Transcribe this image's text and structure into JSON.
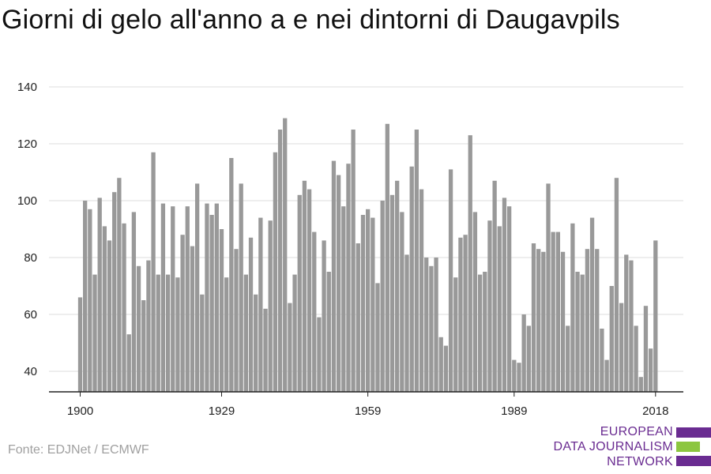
{
  "title": "Giorni di gelo all'anno a e nei dintorni di Daugavpils",
  "source": "Fonte: EDJNet / ECMWF",
  "logo": {
    "line1": "EUROPEAN",
    "line2": "DATA JOURNALISM",
    "line3": "NETWORK",
    "colors": {
      "purple": "#6a2c91",
      "green": "#8cc63f"
    }
  },
  "chart_data": {
    "type": "bar",
    "title": "Giorni di gelo all'anno a e nei dintorni di Daugavpils",
    "xlabel": "",
    "ylabel": "",
    "ylim": [
      33,
      145
    ],
    "yticks": [
      40,
      60,
      80,
      100,
      120,
      140
    ],
    "xticks": [
      1900,
      1929,
      1959,
      1989,
      2018
    ],
    "grid": true,
    "bar_color": "#999999",
    "x": [
      1900,
      1901,
      1902,
      1903,
      1904,
      1905,
      1906,
      1907,
      1908,
      1909,
      1910,
      1911,
      1912,
      1913,
      1914,
      1915,
      1916,
      1917,
      1918,
      1919,
      1920,
      1921,
      1922,
      1923,
      1924,
      1925,
      1926,
      1927,
      1928,
      1929,
      1930,
      1931,
      1932,
      1933,
      1934,
      1935,
      1936,
      1937,
      1938,
      1939,
      1940,
      1941,
      1942,
      1943,
      1944,
      1945,
      1946,
      1947,
      1948,
      1949,
      1950,
      1951,
      1952,
      1953,
      1954,
      1955,
      1956,
      1957,
      1958,
      1959,
      1960,
      1961,
      1962,
      1963,
      1964,
      1965,
      1966,
      1967,
      1968,
      1969,
      1970,
      1971,
      1972,
      1973,
      1974,
      1975,
      1976,
      1977,
      1978,
      1979,
      1980,
      1981,
      1982,
      1983,
      1984,
      1985,
      1986,
      1987,
      1988,
      1989,
      1990,
      1991,
      1992,
      1993,
      1994,
      1995,
      1996,
      1997,
      1998,
      1999,
      2000,
      2001,
      2002,
      2003,
      2004,
      2005,
      2006,
      2007,
      2008,
      2009,
      2010,
      2011,
      2012,
      2013,
      2014,
      2015,
      2016,
      2017,
      2018
    ],
    "values": [
      66,
      100,
      97,
      74,
      101,
      91,
      86,
      103,
      108,
      92,
      53,
      96,
      77,
      65,
      79,
      117,
      74,
      99,
      74,
      98,
      73,
      88,
      98,
      84,
      106,
      67,
      99,
      95,
      99,
      90,
      73,
      115,
      83,
      106,
      74,
      87,
      67,
      94,
      62,
      93,
      117,
      125,
      129,
      64,
      74,
      102,
      107,
      104,
      89,
      59,
      86,
      75,
      114,
      109,
      98,
      113,
      125,
      85,
      95,
      97,
      94,
      71,
      100,
      127,
      102,
      107,
      96,
      81,
      112,
      125,
      104,
      80,
      77,
      80,
      52,
      49,
      111,
      73,
      87,
      88,
      123,
      96,
      74,
      75,
      93,
      107,
      91,
      101,
      98,
      44,
      43,
      60,
      56,
      85,
      83,
      82,
      106,
      89,
      89,
      82,
      56,
      92,
      75,
      74,
      83,
      94,
      83,
      55,
      44,
      70,
      108,
      64,
      81,
      79,
      56,
      38,
      63,
      48,
      86
    ]
  }
}
